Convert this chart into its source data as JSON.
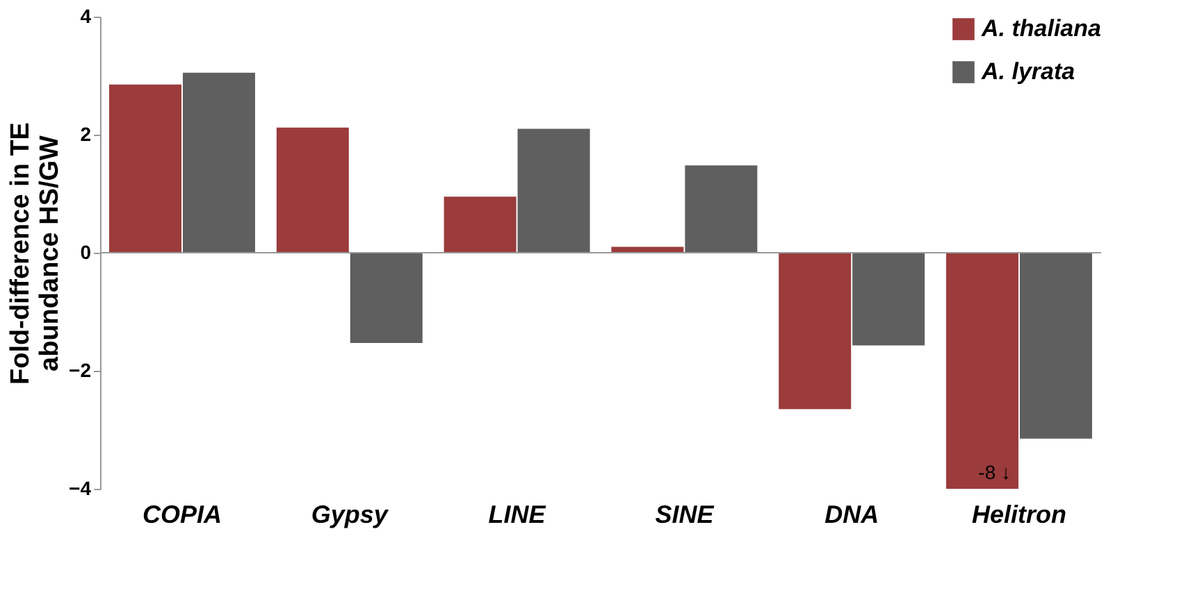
{
  "chart_data": {
    "type": "bar",
    "categories": [
      "COPIA",
      "Gypsy",
      "LINE",
      "SINE",
      "DNA",
      "Helitron"
    ],
    "series": [
      {
        "name": "A. thaliana",
        "color": "#9b3b3b",
        "values": [
          2.85,
          2.12,
          0.95,
          0.1,
          -2.65,
          -4
        ]
      },
      {
        "name": "A. lyrata",
        "color": "#5f5f5f",
        "values": [
          3.05,
          -1.53,
          2.1,
          1.48,
          -1.57,
          -3.15
        ]
      }
    ],
    "ylabel": "Fold-difference in TE\nabundance HS/GW",
    "ylim": [
      -4,
      4
    ],
    "yticks": [
      -4,
      -2,
      0,
      2,
      4
    ],
    "annotations": [
      {
        "text": "-8 ↓",
        "x": "Helitron",
        "y": -4
      }
    ],
    "ref_lines": [
      {
        "axis": "y",
        "value": 0,
        "color": "#999999"
      }
    ],
    "legend": "top right"
  }
}
